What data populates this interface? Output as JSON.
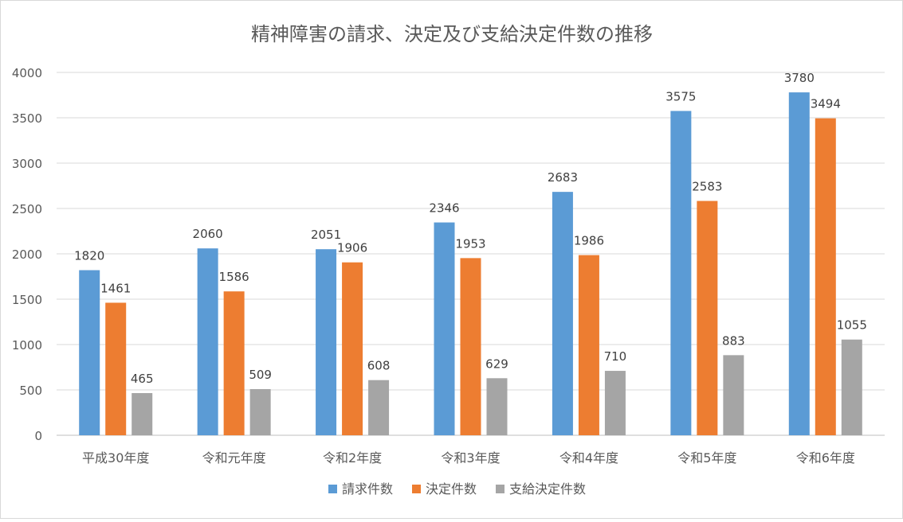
{
  "chart_data": {
    "type": "bar",
    "title": "精神障害の請求、決定及び支給決定件数の推移",
    "xlabel": "",
    "ylabel": "",
    "ylim": [
      0,
      4000
    ],
    "yticks": [
      0,
      500,
      1000,
      1500,
      2000,
      2500,
      3000,
      3500,
      4000
    ],
    "grid": true,
    "legend_position": "bottom",
    "categories": [
      "平成30年度",
      "令和元年度",
      "令和2年度",
      "令和3年度",
      "令和4年度",
      "令和5年度",
      "令和6年度"
    ],
    "series": [
      {
        "name": "請求件数",
        "color": "#5B9BD5",
        "values": [
          1820,
          2060,
          2051,
          2346,
          2683,
          3575,
          3780
        ]
      },
      {
        "name": "決定件数",
        "color": "#ED7D31",
        "values": [
          1461,
          1586,
          1906,
          1953,
          1986,
          2583,
          3494
        ]
      },
      {
        "name": "支給決定件数",
        "color": "#A5A5A5",
        "values": [
          465,
          509,
          608,
          629,
          710,
          883,
          1055
        ]
      }
    ]
  }
}
